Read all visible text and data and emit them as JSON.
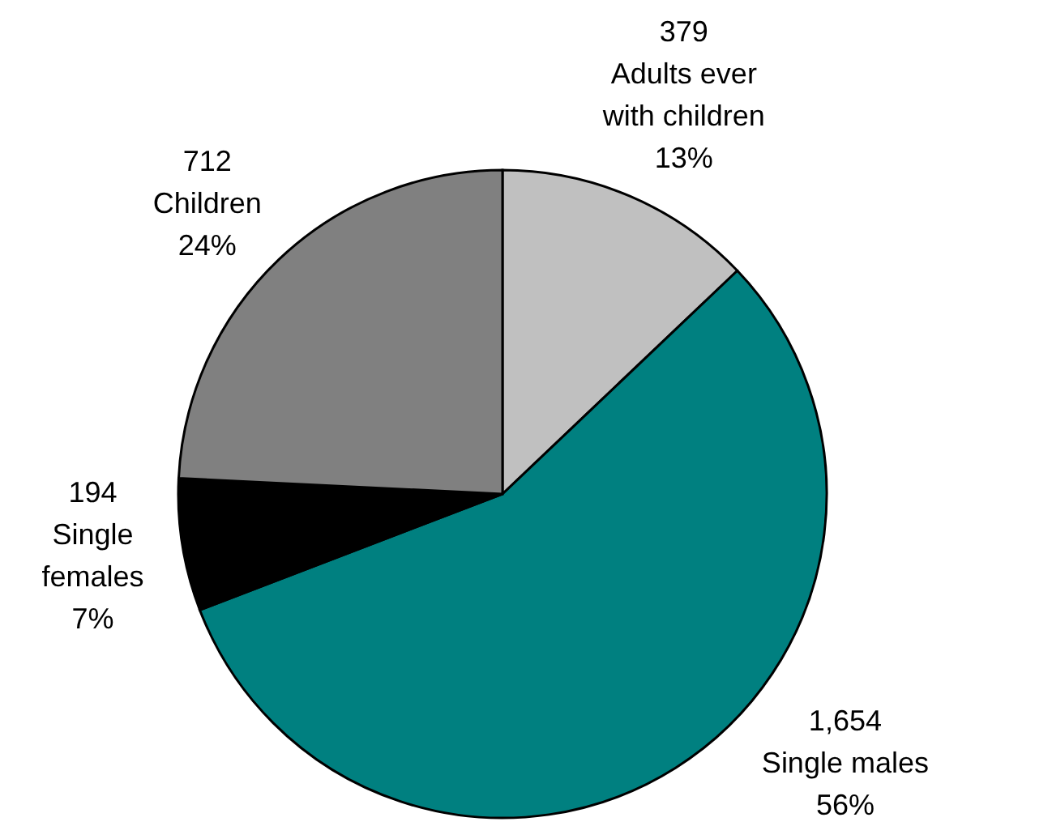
{
  "chart_data": {
    "type": "pie",
    "categories": [
      "Adults ever with children",
      "Single males",
      "Single females",
      "Children"
    ],
    "values": [
      379,
      1654,
      194,
      712
    ],
    "colors": [
      "#c0c0c0",
      "#008080",
      "#000000",
      "#808080"
    ],
    "value_labels": [
      "379",
      "1,654",
      "194",
      "712"
    ],
    "annotations": [
      {
        "text": "13%",
        "x": "Adults ever with children"
      },
      {
        "text": "56%",
        "x": "Single males"
      },
      {
        "text": "7%",
        "x": "Single females"
      },
      {
        "text": "24%",
        "x": "Children"
      }
    ]
  }
}
